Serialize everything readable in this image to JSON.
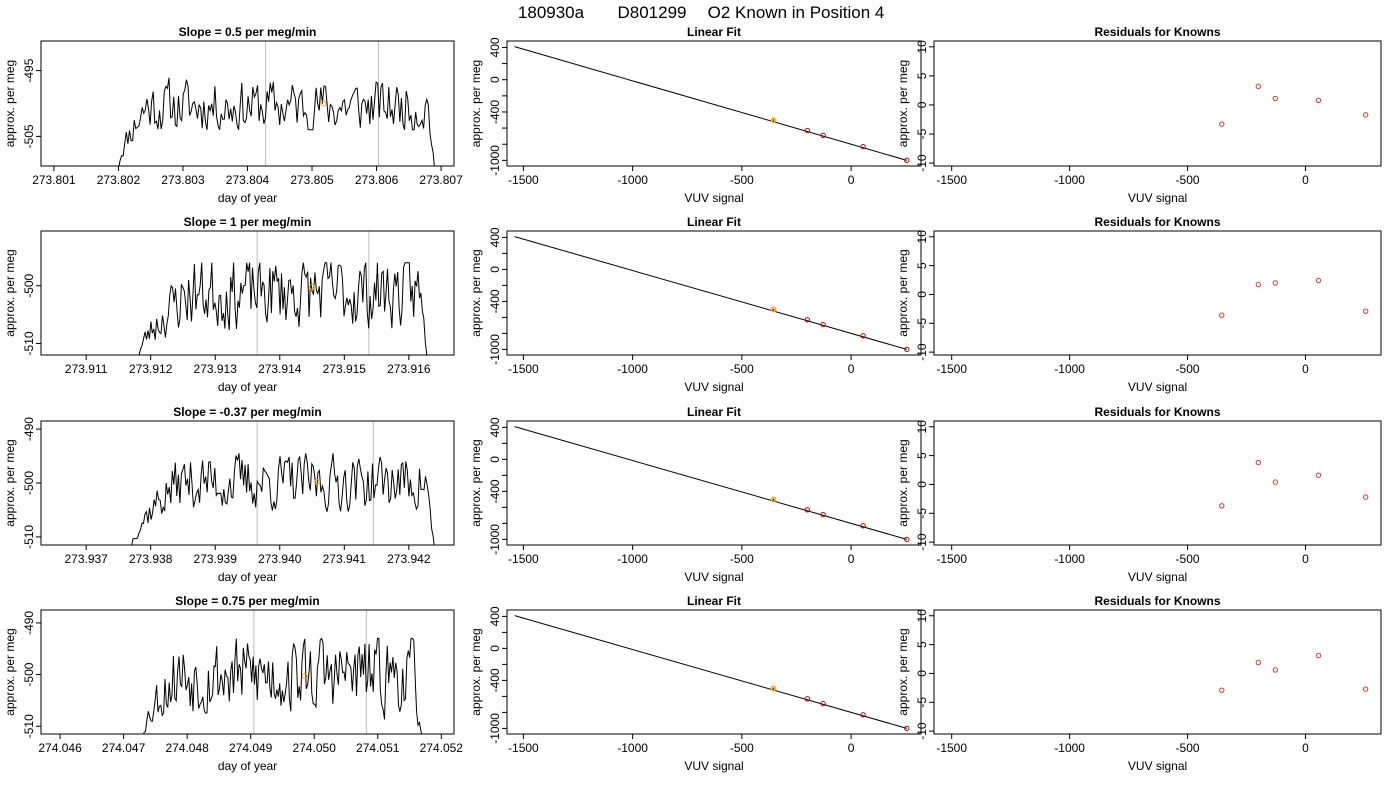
{
  "figure": {
    "title_parts": [
      "180930a",
      "D801299",
      "O2 Known in Position  4"
    ],
    "colors": {
      "trace": "#000000",
      "gridline": "#bebebe",
      "marker_known": "#ffa500",
      "marker_fit": "#c00000",
      "point_resid": "#e03030"
    }
  },
  "chart_data": [
    {
      "type": "line",
      "row": 1,
      "panel": "trace",
      "title": "Slope =  0.5  per meg/min",
      "xlabel": "day of year",
      "ylabel": "approx. per meg",
      "xlim": [
        273.8008,
        273.8072
      ],
      "ylim": [
        -509.5,
        -490.5
      ],
      "xticks": [
        "273.801",
        "273.802",
        "273.803",
        "273.804",
        "273.805",
        "273.806",
        "273.807"
      ],
      "yticks": [
        "-495",
        "-505"
      ],
      "ytick_values": [
        -495,
        -505
      ],
      "vlines": [
        273.80428,
        273.80603
      ],
      "trace": {
        "x_start": 273.802,
        "x_end": 273.8069,
        "y_start": -510,
        "y_end": -510,
        "level": -500.4,
        "peak": -495.0,
        "trough": -504.0,
        "rise_frac": 0.09,
        "fall_frac": 0.02,
        "seed": 11
      },
      "marker": {
        "x": 273.80518,
        "y": -500
      }
    },
    {
      "type": "scatter",
      "row": 1,
      "panel": "fit",
      "title": "Linear Fit",
      "xlabel": "VUV signal",
      "ylabel": "approx. per meg",
      "xlim": [
        -1575,
        320
      ],
      "ylim": [
        -1070,
        480
      ],
      "xticks": [
        "-1500",
        "-1000",
        "-500",
        "0"
      ],
      "xtick_values": [
        -1500,
        -1000,
        -500,
        0
      ],
      "yticks": [
        "400",
        "0",
        "-400",
        "-1000"
      ],
      "ytick_values": [
        400,
        0,
        -400,
        -1000
      ],
      "line": {
        "x": [
          -1540,
          255
        ],
        "y": [
          410,
          -1000
        ]
      },
      "points": [
        {
          "x": -355,
          "y": -500
        },
        {
          "x": -200,
          "y": -630
        },
        {
          "x": -128,
          "y": -690
        },
        {
          "x": 55,
          "y": -830
        },
        {
          "x": 255,
          "y": -1000
        }
      ],
      "known_index": 0
    },
    {
      "type": "scatter",
      "row": 1,
      "panel": "resid",
      "title": "Residuals for Knowns",
      "xlabel": "VUV signal",
      "ylabel": "approx. per meg",
      "xlim": [
        -1575,
        320
      ],
      "ylim": [
        -10.5,
        11
      ],
      "xticks": [
        "-1500",
        "-1000",
        "-500",
        "0"
      ],
      "xtick_values": [
        -1500,
        -1000,
        -500,
        0
      ],
      "yticks": [
        "10",
        "5",
        "0",
        "-5",
        "-10"
      ],
      "ytick_values": [
        10,
        5,
        0,
        -5,
        -10
      ],
      "points": [
        {
          "x": -355,
          "y": -3.3
        },
        {
          "x": -200,
          "y": 3.2
        },
        {
          "x": -128,
          "y": 1.1
        },
        {
          "x": 55,
          "y": 0.8
        },
        {
          "x": 255,
          "y": -1.7
        }
      ]
    },
    {
      "type": "line",
      "row": 2,
      "panel": "trace",
      "title": "Slope =  1  per meg/min",
      "xlabel": "day of year",
      "ylabel": "approx. per meg",
      "xlim": [
        273.9103,
        273.9167
      ],
      "ylim": [
        -512,
        -490.5
      ],
      "xticks": [
        "273.911",
        "273.912",
        "273.913",
        "273.914",
        "273.915",
        "273.916"
      ],
      "yticks": [
        "-500",
        "-510"
      ],
      "ytick_values": [
        -500,
        -510
      ],
      "vlines": [
        273.91365,
        273.91538
      ],
      "trace": {
        "x_start": 273.9118,
        "x_end": 273.9163,
        "y_start": -513,
        "y_end": -513,
        "level": -501.0,
        "peak": -496.0,
        "trough": -510.0,
        "rise_frac": 0.18,
        "fall_frac": 0.03,
        "seed": 23
      },
      "marker": {
        "x": 273.9145,
        "y": -500.2
      }
    },
    {
      "type": "scatter",
      "row": 2,
      "panel": "fit",
      "title": "Linear Fit",
      "xlabel": "VUV signal",
      "ylabel": "approx. per meg",
      "xlim": [
        -1575,
        320
      ],
      "ylim": [
        -1070,
        480
      ],
      "xticks": [
        "-1500",
        "-1000",
        "-500",
        "0"
      ],
      "xtick_values": [
        -1500,
        -1000,
        -500,
        0
      ],
      "yticks": [
        "400",
        "0",
        "-400",
        "-1000"
      ],
      "ytick_values": [
        400,
        0,
        -400,
        -1000
      ],
      "line": {
        "x": [
          -1540,
          255
        ],
        "y": [
          410,
          -1000
        ]
      },
      "points": [
        {
          "x": -355,
          "y": -500
        },
        {
          "x": -200,
          "y": -630
        },
        {
          "x": -128,
          "y": -690
        },
        {
          "x": 55,
          "y": -830
        },
        {
          "x": 255,
          "y": -1000
        }
      ],
      "known_index": 0
    },
    {
      "type": "scatter",
      "row": 2,
      "panel": "resid",
      "title": "Residuals for Knowns",
      "xlabel": "VUV signal",
      "ylabel": "approx. per meg",
      "xlim": [
        -1575,
        320
      ],
      "ylim": [
        -10.5,
        11
      ],
      "xticks": [
        "-1500",
        "-1000",
        "-500",
        "0"
      ],
      "xtick_values": [
        -1500,
        -1000,
        -500,
        0
      ],
      "yticks": [
        "10",
        "5",
        "0",
        "-5",
        "-10"
      ],
      "ytick_values": [
        10,
        5,
        0,
        -5,
        -10
      ],
      "points": [
        {
          "x": -355,
          "y": -3.6
        },
        {
          "x": -200,
          "y": 1.7
        },
        {
          "x": -128,
          "y": 2.0
        },
        {
          "x": 55,
          "y": 2.4
        },
        {
          "x": 255,
          "y": -2.9
        }
      ]
    },
    {
      "type": "line",
      "row": 3,
      "panel": "trace",
      "title": "Slope =  -0.37  per meg/min",
      "xlabel": "day of year",
      "ylabel": "approx. per meg",
      "xlim": [
        273.9363,
        273.9427
      ],
      "ylim": [
        -511.5,
        -488.5
      ],
      "xticks": [
        "273.937",
        "273.938",
        "273.939",
        "273.940",
        "273.941",
        "273.942"
      ],
      "yticks": [
        "-490",
        "-500",
        "-510"
      ],
      "ytick_values": [
        -490,
        -500,
        -510
      ],
      "vlines": [
        273.93965,
        273.94145
      ],
      "trace": {
        "x_start": 273.9377,
        "x_end": 273.9424,
        "y_start": -512,
        "y_end": -512,
        "level": -499.8,
        "peak": -494.5,
        "trough": -506.0,
        "rise_frac": 0.16,
        "fall_frac": 0.03,
        "seed": 37
      },
      "marker": {
        "x": 273.94058,
        "y": -499.8
      }
    },
    {
      "type": "scatter",
      "row": 3,
      "panel": "fit",
      "title": "Linear Fit",
      "xlabel": "VUV signal",
      "ylabel": "approx. per meg",
      "xlim": [
        -1575,
        320
      ],
      "ylim": [
        -1070,
        480
      ],
      "xticks": [
        "-1500",
        "-1000",
        "-500",
        "0"
      ],
      "xtick_values": [
        -1500,
        -1000,
        -500,
        0
      ],
      "yticks": [
        "400",
        "0",
        "-400",
        "-1000"
      ],
      "ytick_values": [
        400,
        0,
        -400,
        -1000
      ],
      "line": {
        "x": [
          -1540,
          255
        ],
        "y": [
          410,
          -1000
        ]
      },
      "points": [
        {
          "x": -355,
          "y": -500
        },
        {
          "x": -200,
          "y": -630
        },
        {
          "x": -128,
          "y": -690
        },
        {
          "x": 55,
          "y": -830
        },
        {
          "x": 255,
          "y": -1000
        }
      ],
      "known_index": 0
    },
    {
      "type": "scatter",
      "row": 3,
      "panel": "resid",
      "title": "Residuals for Knowns",
      "xlabel": "VUV signal",
      "ylabel": "approx. per meg",
      "xlim": [
        -1575,
        320
      ],
      "ylim": [
        -10.5,
        11
      ],
      "xticks": [
        "-1500",
        "-1000",
        "-500",
        "0"
      ],
      "xtick_values": [
        -1500,
        -1000,
        -500,
        0
      ],
      "yticks": [
        "10",
        "5",
        "0",
        "-5",
        "-10"
      ],
      "ytick_values": [
        10,
        5,
        0,
        -5,
        -10
      ],
      "points": [
        {
          "x": -355,
          "y": -3.7
        },
        {
          "x": -200,
          "y": 3.8
        },
        {
          "x": -128,
          "y": 0.4
        },
        {
          "x": 55,
          "y": 1.6
        },
        {
          "x": 255,
          "y": -2.2
        }
      ]
    },
    {
      "type": "line",
      "row": 4,
      "panel": "trace",
      "title": "Slope =  0.75  per meg/min",
      "xlabel": "day of year",
      "ylabel": "approx. per meg",
      "xlim": [
        274.0457,
        274.0522
      ],
      "ylim": [
        -511.5,
        -487.5
      ],
      "xticks": [
        "274.046",
        "274.047",
        "274.048",
        "274.049",
        "274.050",
        "274.051",
        "274.052"
      ],
      "yticks": [
        "-490",
        "-500",
        "-510"
      ],
      "ytick_values": [
        -490,
        -500,
        -510
      ],
      "vlines": [
        274.04905,
        274.05082
      ],
      "trace": {
        "x_start": 274.0473,
        "x_end": 274.0517,
        "y_start": -512,
        "y_end": -512,
        "level": -500.0,
        "peak": -493.0,
        "trough": -509.5,
        "rise_frac": 0.12,
        "fall_frac": 0.03,
        "seed": 53
      },
      "marker": {
        "x": 274.04985,
        "y": -500.3
      }
    },
    {
      "type": "scatter",
      "row": 4,
      "panel": "fit",
      "title": "Linear Fit",
      "xlabel": "VUV signal",
      "ylabel": "approx. per meg",
      "xlim": [
        -1575,
        320
      ],
      "ylim": [
        -1070,
        480
      ],
      "xticks": [
        "-1500",
        "-1000",
        "-500",
        "0"
      ],
      "xtick_values": [
        -1500,
        -1000,
        -500,
        0
      ],
      "yticks": [
        "400",
        "0",
        "-400",
        "-1000"
      ],
      "ytick_values": [
        400,
        0,
        -400,
        -1000
      ],
      "line": {
        "x": [
          -1540,
          255
        ],
        "y": [
          410,
          -1000
        ]
      },
      "points": [
        {
          "x": -355,
          "y": -500
        },
        {
          "x": -200,
          "y": -630
        },
        {
          "x": -128,
          "y": -690
        },
        {
          "x": 55,
          "y": -830
        },
        {
          "x": 255,
          "y": -1000
        }
      ],
      "known_index": 0
    },
    {
      "type": "scatter",
      "row": 4,
      "panel": "resid",
      "title": "Residuals for Knowns",
      "xlabel": "VUV signal",
      "ylabel": "approx. per meg",
      "xlim": [
        -1575,
        320
      ],
      "ylim": [
        -10.5,
        11
      ],
      "xticks": [
        "-1500",
        "-1000",
        "-500",
        "0"
      ],
      "xtick_values": [
        -1500,
        -1000,
        -500,
        0
      ],
      "yticks": [
        "10",
        "5",
        "0",
        "-5",
        "-10"
      ],
      "ytick_values": [
        10,
        5,
        0,
        -5,
        -10
      ],
      "points": [
        {
          "x": -355,
          "y": -2.9
        },
        {
          "x": -200,
          "y": 1.9
        },
        {
          "x": -128,
          "y": 0.6
        },
        {
          "x": 55,
          "y": 3.1
        },
        {
          "x": 255,
          "y": -2.7
        }
      ]
    }
  ]
}
